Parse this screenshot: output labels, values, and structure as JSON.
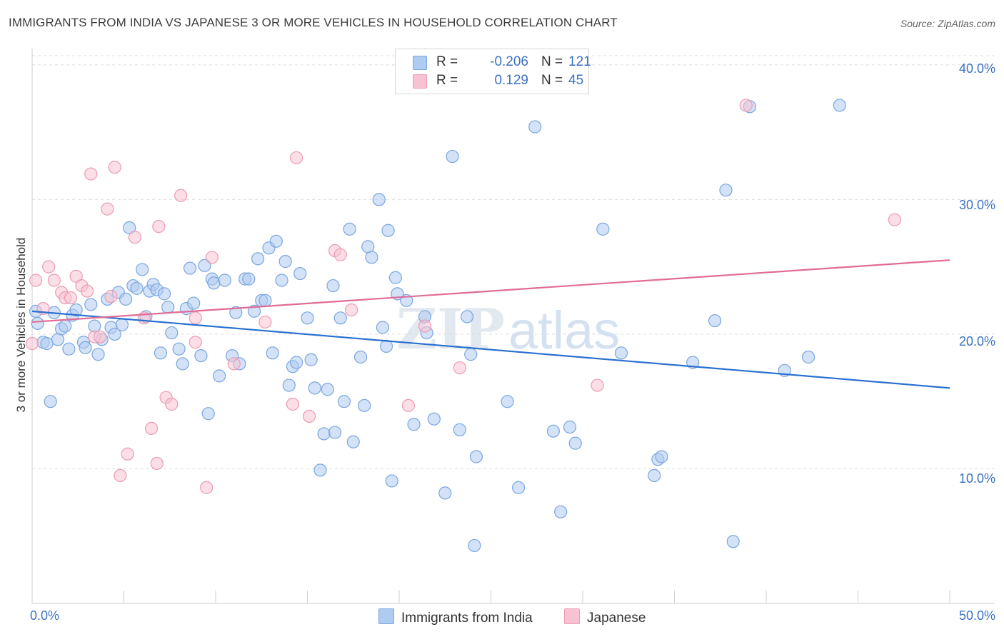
{
  "title": "IMMIGRANTS FROM INDIA VS JAPANESE 3 OR MORE VEHICLES IN HOUSEHOLD CORRELATION CHART",
  "source": "Source: ZipAtlas.com",
  "watermark": "ZIPatlas",
  "colors": {
    "india_fill": "#aecbf1",
    "india_stroke": "#7aa6e0",
    "india_line": "#2a6fcf",
    "japanese_fill": "#f7c2d2",
    "japanese_stroke": "#ec9bb5",
    "japanese_line": "#e06c96",
    "tick_text": "#3b72c4",
    "grid": "#dcdcdc"
  },
  "legend": {
    "rows": [
      {
        "r_label": "R =",
        "r_value": "-0.206",
        "n_label": "N =",
        "n_value": "121"
      },
      {
        "r_label": "R =",
        "r_value": "0.129",
        "n_label": "N =",
        "n_value": "45"
      }
    ]
  },
  "chart_data": {
    "type": "scatter",
    "title": "IMMIGRANTS FROM INDIA VS JAPANESE 3 OR MORE VEHICLES IN HOUSEHOLD CORRELATION CHART",
    "xlabel": "",
    "ylabel": "3 or more Vehicles in Household",
    "xlim": [
      0,
      50
    ],
    "ylim": [
      0,
      41
    ],
    "x_tick_labels": [
      "0.0%",
      "50.0%"
    ],
    "y_ticks": [
      10,
      20,
      30,
      40
    ],
    "y_tick_labels": [
      "10.0%",
      "20.0%",
      "30.0%",
      "40.0%"
    ],
    "grid": true,
    "legend_position": "bottom",
    "series": [
      {
        "name": "Immigrants from India",
        "points": [
          [
            0.2,
            21.7
          ],
          [
            0.3,
            20.8
          ],
          [
            0.6,
            19.4
          ],
          [
            0.8,
            19.3
          ],
          [
            1.0,
            15.0
          ],
          [
            1.2,
            21.6
          ],
          [
            1.4,
            19.6
          ],
          [
            1.6,
            20.4
          ],
          [
            1.8,
            20.6
          ],
          [
            2.0,
            18.9
          ],
          [
            2.2,
            21.4
          ],
          [
            2.4,
            21.8
          ],
          [
            2.8,
            19.4
          ],
          [
            2.9,
            19.0
          ],
          [
            3.2,
            22.2
          ],
          [
            3.4,
            20.6
          ],
          [
            3.6,
            18.5
          ],
          [
            3.8,
            19.6
          ],
          [
            4.1,
            22.6
          ],
          [
            4.3,
            20.5
          ],
          [
            4.5,
            20.0
          ],
          [
            4.7,
            23.1
          ],
          [
            4.9,
            20.7
          ],
          [
            5.1,
            22.6
          ],
          [
            5.3,
            27.9
          ],
          [
            5.5,
            23.6
          ],
          [
            5.7,
            23.4
          ],
          [
            6.0,
            24.8
          ],
          [
            6.2,
            21.3
          ],
          [
            6.4,
            23.2
          ],
          [
            6.6,
            23.7
          ],
          [
            6.8,
            23.3
          ],
          [
            7.0,
            18.6
          ],
          [
            7.2,
            23.0
          ],
          [
            7.4,
            22.0
          ],
          [
            7.6,
            20.1
          ],
          [
            8.0,
            18.9
          ],
          [
            8.2,
            17.8
          ],
          [
            8.4,
            21.9
          ],
          [
            8.6,
            24.9
          ],
          [
            8.8,
            22.3
          ],
          [
            9.2,
            18.4
          ],
          [
            9.4,
            25.1
          ],
          [
            9.6,
            14.1
          ],
          [
            9.8,
            24.1
          ],
          [
            9.9,
            23.8
          ],
          [
            10.5,
            24.0
          ],
          [
            10.2,
            16.9
          ],
          [
            10.9,
            18.4
          ],
          [
            11.1,
            21.6
          ],
          [
            11.3,
            17.8
          ],
          [
            11.6,
            24.1
          ],
          [
            11.8,
            24.1
          ],
          [
            12.1,
            21.7
          ],
          [
            12.3,
            25.6
          ],
          [
            12.5,
            22.5
          ],
          [
            12.7,
            22.5
          ],
          [
            12.9,
            26.4
          ],
          [
            13.1,
            18.6
          ],
          [
            13.3,
            26.9
          ],
          [
            13.6,
            24.0
          ],
          [
            13.8,
            25.4
          ],
          [
            14.0,
            16.2
          ],
          [
            14.2,
            17.6
          ],
          [
            14.4,
            17.9
          ],
          [
            14.6,
            24.5
          ],
          [
            15.0,
            21.2
          ],
          [
            15.2,
            18.1
          ],
          [
            15.4,
            16.0
          ],
          [
            15.7,
            9.9
          ],
          [
            15.9,
            12.6
          ],
          [
            16.1,
            15.9
          ],
          [
            16.4,
            23.6
          ],
          [
            16.5,
            12.7
          ],
          [
            16.8,
            21.2
          ],
          [
            17.0,
            15.0
          ],
          [
            17.3,
            27.8
          ],
          [
            17.5,
            12.0
          ],
          [
            17.9,
            18.3
          ],
          [
            18.1,
            14.7
          ],
          [
            18.3,
            26.5
          ],
          [
            18.5,
            25.7
          ],
          [
            18.9,
            30.0
          ],
          [
            19.1,
            20.5
          ],
          [
            19.3,
            19.1
          ],
          [
            19.4,
            27.7
          ],
          [
            19.6,
            9.1
          ],
          [
            19.8,
            24.2
          ],
          [
            19.9,
            23.0
          ],
          [
            20.4,
            22.5
          ],
          [
            20.8,
            13.3
          ],
          [
            21.4,
            21.3
          ],
          [
            21.5,
            20.1
          ],
          [
            21.9,
            13.7
          ],
          [
            22.5,
            8.2
          ],
          [
            22.9,
            33.2
          ],
          [
            23.3,
            12.9
          ],
          [
            23.7,
            21.3
          ],
          [
            23.9,
            18.5
          ],
          [
            24.1,
            4.3
          ],
          [
            24.2,
            10.9
          ],
          [
            25.9,
            15.0
          ],
          [
            26.5,
            8.6
          ],
          [
            27.4,
            35.4
          ],
          [
            28.4,
            12.8
          ],
          [
            28.8,
            6.8
          ],
          [
            29.3,
            13.1
          ],
          [
            29.6,
            11.9
          ],
          [
            31.1,
            27.8
          ],
          [
            32.1,
            18.6
          ],
          [
            33.9,
            9.5
          ],
          [
            34.1,
            10.7
          ],
          [
            34.3,
            10.9
          ],
          [
            36.0,
            17.9
          ],
          [
            37.2,
            21.0
          ],
          [
            37.8,
            30.7
          ],
          [
            38.2,
            4.6
          ],
          [
            39.1,
            36.9
          ],
          [
            41.0,
            17.3
          ],
          [
            42.3,
            18.3
          ],
          [
            44.0,
            37.0
          ]
        ]
      },
      {
        "name": "Japanese",
        "points": [
          [
            0.0,
            19.3
          ],
          [
            0.2,
            24.0
          ],
          [
            0.6,
            21.9
          ],
          [
            0.9,
            25.0
          ],
          [
            1.2,
            24.0
          ],
          [
            1.6,
            23.1
          ],
          [
            1.8,
            22.7
          ],
          [
            2.1,
            22.7
          ],
          [
            2.4,
            24.3
          ],
          [
            2.7,
            23.6
          ],
          [
            3.0,
            23.2
          ],
          [
            3.2,
            31.9
          ],
          [
            3.4,
            19.8
          ],
          [
            3.7,
            19.8
          ],
          [
            4.1,
            29.3
          ],
          [
            4.3,
            22.8
          ],
          [
            4.5,
            32.4
          ],
          [
            4.8,
            9.5
          ],
          [
            5.2,
            11.1
          ],
          [
            5.6,
            27.2
          ],
          [
            6.1,
            21.2
          ],
          [
            6.5,
            13.0
          ],
          [
            6.8,
            10.4
          ],
          [
            6.9,
            28.0
          ],
          [
            7.3,
            15.3
          ],
          [
            7.6,
            14.8
          ],
          [
            8.1,
            30.3
          ],
          [
            8.9,
            21.2
          ],
          [
            8.9,
            19.4
          ],
          [
            9.5,
            8.6
          ],
          [
            9.8,
            25.7
          ],
          [
            11.0,
            17.8
          ],
          [
            12.7,
            20.9
          ],
          [
            14.2,
            14.8
          ],
          [
            14.4,
            33.1
          ],
          [
            15.1,
            13.9
          ],
          [
            16.5,
            26.2
          ],
          [
            16.8,
            25.9
          ],
          [
            17.4,
            21.8
          ],
          [
            20.5,
            14.7
          ],
          [
            21.4,
            20.6
          ],
          [
            23.3,
            17.5
          ],
          [
            30.8,
            16.2
          ],
          [
            38.9,
            37.0
          ],
          [
            47.0,
            28.5
          ]
        ]
      }
    ],
    "trendlines": [
      {
        "series": "Immigrants from India",
        "x": [
          0,
          50
        ],
        "y": [
          21.7,
          16.0
        ]
      },
      {
        "series": "Japanese",
        "x": [
          0,
          50
        ],
        "y": [
          20.9,
          25.5
        ]
      }
    ]
  },
  "bottom_legend": [
    {
      "label": "Immigrants from India"
    },
    {
      "label": "Japanese"
    }
  ]
}
